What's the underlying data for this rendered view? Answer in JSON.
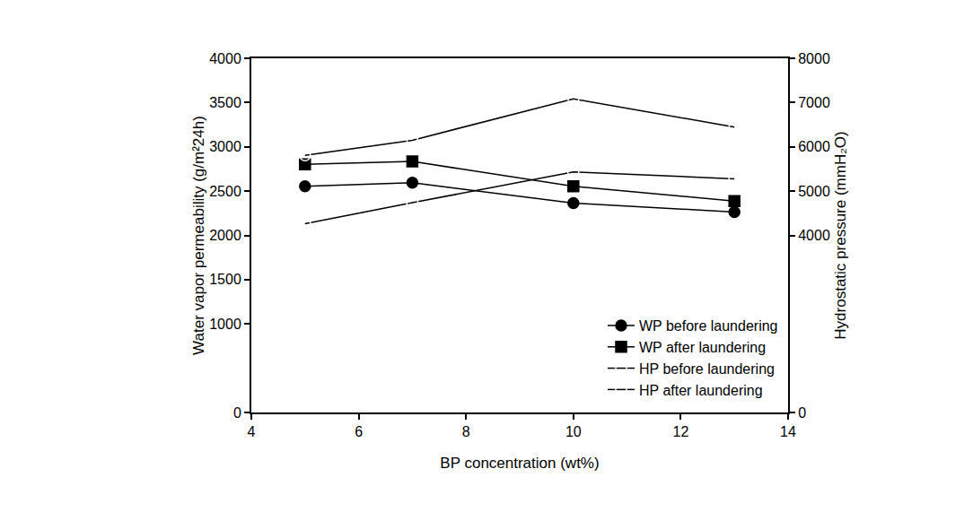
{
  "chart_data": {
    "type": "line",
    "x_label": "BP concentration (wt%)",
    "y_label": "Water vapor permeability (g/m²24h)",
    "y2_label": "Hydrostatic pressure (mmH₂O)",
    "x": [
      5,
      7,
      10,
      13
    ],
    "xlim": [
      4,
      14
    ],
    "xticks": [
      4,
      6,
      8,
      10,
      12,
      14
    ],
    "ylim": [
      0,
      4000
    ],
    "yticks": [
      0,
      1000,
      1500,
      2000,
      2500,
      3000,
      3500,
      4000
    ],
    "y2lim": [
      0,
      8000
    ],
    "y2ticks": [
      0,
      4000,
      5000,
      6000,
      7000,
      8000
    ],
    "grid": false,
    "legend": "lower right",
    "series": [
      {
        "name": "WP before laundering",
        "color": "#000000",
        "marker": "circle",
        "line_style": "solid",
        "values": [
          2554,
          2595,
          2364,
          2264
        ]
      },
      {
        "name": "WP after laundering",
        "color": "#000000",
        "marker": "square",
        "line_style": "solid",
        "values": [
          2802,
          2835,
          2554,
          2388
        ]
      },
      {
        "name": "HP before laundering",
        "color": "#000000",
        "marker": "circle-open",
        "line_style": "solid",
        "axis": "y2",
        "values": [
          5807,
          6149,
          7085,
          6446
        ]
      },
      {
        "name": "HP after laundering",
        "color": "#000000",
        "marker": "square-open",
        "line_style": "solid",
        "axis": "y2",
        "values": [
          4264,
          4738,
          5433,
          5278
        ]
      }
    ]
  }
}
